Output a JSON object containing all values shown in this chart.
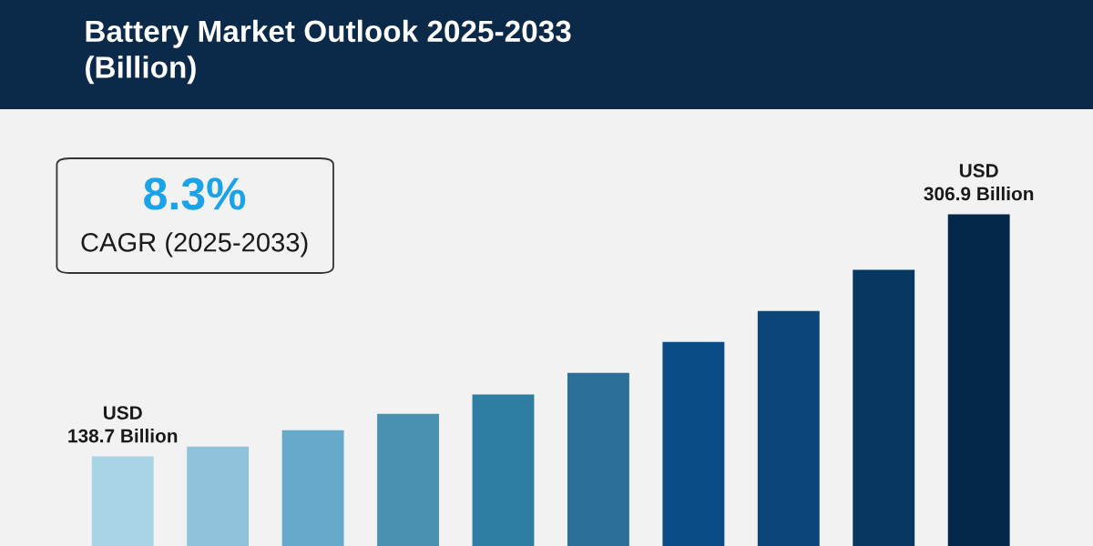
{
  "chart_data": {
    "type": "bar",
    "title": "Battery Market Outlook 2025-2033\n(Billion)",
    "categories": [
      null,
      null,
      null,
      null,
      null,
      null,
      null,
      null,
      null,
      null
    ],
    "values": [
      138.7,
      145.6,
      157.0,
      168.4,
      181.7,
      196.8,
      218.3,
      239.8,
      268.3,
      306.9
    ],
    "colors": [
      "#a8d5e5",
      "#8ec3da",
      "#66a9c8",
      "#4a91b0",
      "#2e7ea3",
      "#2c6f97",
      "#0a4c85",
      "#0b457a",
      "#073862",
      "#05284a"
    ],
    "value_labels": [
      "USD\n138.7 Billion",
      null,
      null,
      null,
      null,
      null,
      null,
      null,
      null,
      "USD\n306.9 Billion"
    ],
    "grid": false,
    "annotations": [
      "8.3%",
      "CAGR (2025-2033)"
    ]
  }
}
